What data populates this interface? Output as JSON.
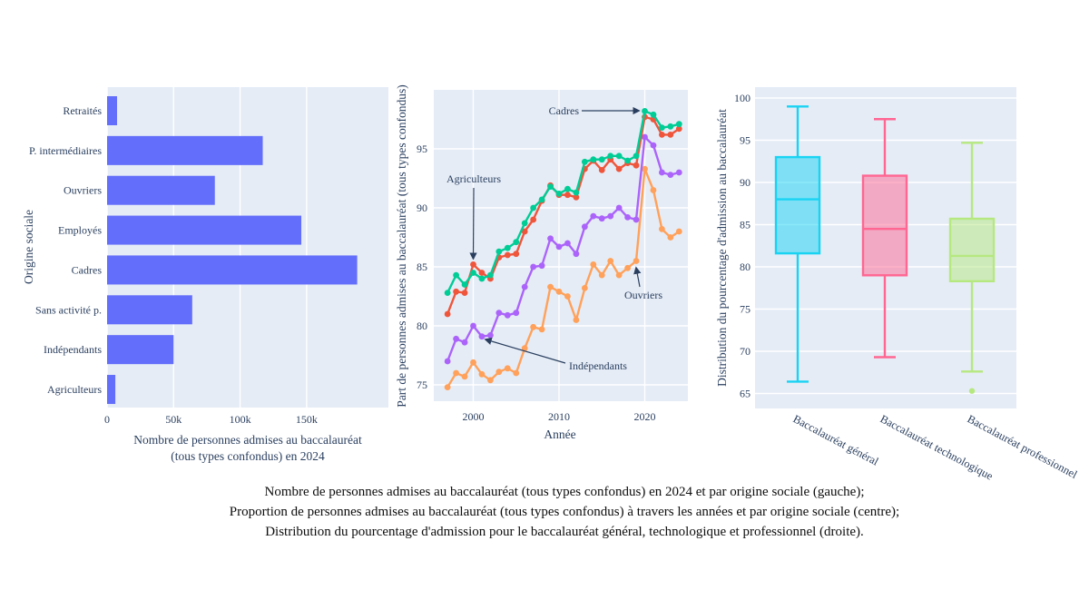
{
  "figure": {
    "paper_bgcolor": "#FFFFFF",
    "plot_bgcolor": "#E5ECF6",
    "grid_color": "#FFFFFF",
    "text_color": "#2A3F5F",
    "annotation_color": "#2A3F5F"
  },
  "caption": {
    "line1": "Nombre de personnes admises au baccalauréat (tous types confondus) en 2024 et par origine sociale (gauche);",
    "line2": "Proportion de personnes admises au baccalauréat (tous types confondus) à travers les années et par origine sociale (centre);",
    "line3": "Distribution du pourcentage d'admission pour le baccalauréat général, technologique et professionnel (droite)."
  },
  "chart_data": [
    {
      "type": "bar",
      "orientation": "horizontal",
      "xlabel_lines": [
        "Nombre de personnes admises au baccalauréat",
        "(tous types confondus) en 2024"
      ],
      "ylabel": "Origine sociale",
      "categories": [
        "Retraités",
        "P. intermédiaires",
        "Ouvriers",
        "Employés",
        "Cadres",
        "Sans activité p.",
        "Indépendants",
        "Agriculteurs"
      ],
      "values": [
        7500,
        117000,
        81000,
        146000,
        188000,
        64000,
        50000,
        6200
      ],
      "xticks": [
        {
          "v": 0,
          "label": "0"
        },
        {
          "v": 50000,
          "label": "50k"
        },
        {
          "v": 100000,
          "label": "100k"
        },
        {
          "v": 150000,
          "label": "150k"
        }
      ],
      "xlim": [
        0,
        211000
      ],
      "bar_color": "#636EFA",
      "grid": true
    },
    {
      "type": "line",
      "xlabel": "Année",
      "ylabel": "Part de personnes admises au baccalauréat (tous types confondus)",
      "x": [
        1997,
        1998,
        1999,
        2000,
        2001,
        2002,
        2003,
        2004,
        2005,
        2006,
        2007,
        2008,
        2009,
        2010,
        2011,
        2012,
        2013,
        2014,
        2015,
        2016,
        2017,
        2018,
        2019,
        2020,
        2021,
        2022,
        2023,
        2024
      ],
      "xticks": [
        2000,
        2010,
        2020
      ],
      "yticks": [
        75,
        80,
        85,
        90,
        95
      ],
      "ylim": [
        73.6,
        100
      ],
      "grid": true,
      "series": [
        {
          "name": "Ouvriers",
          "color": "#FFA15A",
          "values": [
            74.8,
            76.0,
            75.7,
            76.9,
            75.9,
            75.4,
            76.1,
            76.4,
            76.0,
            78.1,
            79.9,
            79.7,
            83.3,
            82.9,
            82.5,
            80.5,
            83.2,
            85.2,
            84.3,
            85.5,
            84.3,
            84.9,
            85.5,
            93.3,
            91.5,
            88.2,
            87.5,
            88.0
          ]
        },
        {
          "name": "Indépendants",
          "color": "#AB63FA",
          "values": [
            77.0,
            78.9,
            78.6,
            80.0,
            79.1,
            79.2,
            81.1,
            80.9,
            81.1,
            83.3,
            85.0,
            85.1,
            87.4,
            86.7,
            87.0,
            86.1,
            88.4,
            89.3,
            89.1,
            89.3,
            90.0,
            89.2,
            89.0,
            96.0,
            95.3,
            93.0,
            92.8,
            93.0
          ]
        },
        {
          "name": "Agriculteurs",
          "color": "#EF553B",
          "values": [
            81.0,
            82.9,
            82.8,
            85.2,
            84.5,
            84.0,
            85.8,
            86.0,
            86.1,
            88.0,
            89.0,
            90.6,
            91.9,
            91.1,
            91.1,
            90.9,
            93.3,
            94.0,
            93.2,
            94.1,
            93.3,
            93.8,
            93.6,
            97.7,
            97.5,
            96.2,
            96.2,
            96.7
          ]
        },
        {
          "name": "Cadres",
          "color": "#00CC96",
          "values": [
            82.8,
            84.3,
            83.5,
            84.5,
            84.0,
            84.3,
            86.3,
            86.6,
            87.1,
            88.7,
            90.0,
            90.7,
            91.8,
            91.2,
            91.6,
            91.3,
            93.9,
            94.1,
            94.1,
            94.4,
            94.4,
            94.0,
            94.4,
            98.2,
            97.9,
            96.8,
            96.9,
            97.1
          ]
        }
      ],
      "annotations": [
        {
          "text": "Cadres",
          "series": "Cadres",
          "year": 2020,
          "value": 98.2
        },
        {
          "text": "Agriculteurs",
          "series": "Agriculteurs",
          "year": 2000,
          "value": 85.2
        },
        {
          "text": "Ouvriers",
          "series": "Ouvriers",
          "year": 2019,
          "value": 85.5
        },
        {
          "text": "Indépendants",
          "series": "Indépendants",
          "year": 2001,
          "value": 79.1
        }
      ]
    },
    {
      "type": "box",
      "ylabel": "Distribution du pourcentage d'admission au baccalauréat",
      "yticks": [
        65,
        70,
        75,
        80,
        85,
        90,
        95,
        100
      ],
      "ylim": [
        63.5,
        101.3
      ],
      "grid": true,
      "boxes": [
        {
          "label": "Baccalauréat général",
          "color": "#19D3F3",
          "low": 66.4,
          "q1": 81.6,
          "median": 88.0,
          "q3": 93.0,
          "high": 99.0,
          "outliers": []
        },
        {
          "label": "Baccalauréat technologique",
          "color": "#FF6692",
          "low": 69.3,
          "q1": 79.0,
          "median": 84.5,
          "q3": 90.8,
          "high": 97.5,
          "outliers": []
        },
        {
          "label": "Baccalauréat professionnel",
          "color": "#B6E880",
          "low": 67.6,
          "q1": 78.3,
          "median": 81.3,
          "q3": 85.7,
          "high": 94.7,
          "outliers": [
            65.3
          ]
        }
      ]
    }
  ]
}
